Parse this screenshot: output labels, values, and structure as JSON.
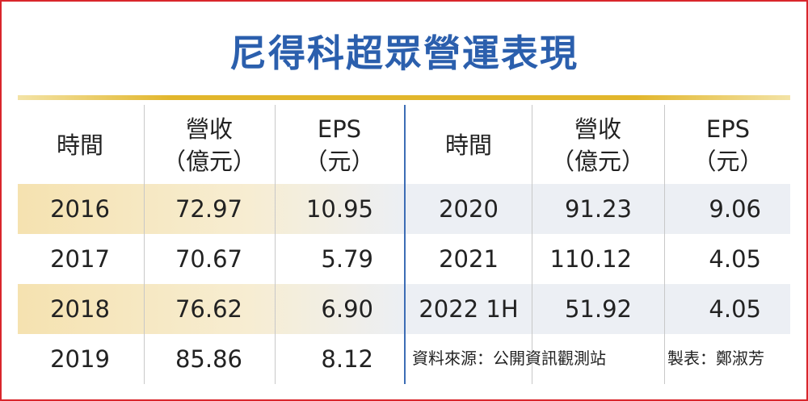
{
  "title": "尼得科超眾營運表現",
  "table": {
    "halves": [
      {
        "header": [
          [
            "時間"
          ],
          [
            "營收",
            "（億元）"
          ],
          [
            "EPS",
            "（元）"
          ]
        ],
        "rows": [
          [
            "2016",
            "72.97",
            "10.95"
          ],
          [
            "2017",
            "70.67",
            "5.79"
          ],
          [
            "2018",
            "76.62",
            "6.90"
          ],
          [
            "2019",
            "85.86",
            "8.12"
          ]
        ]
      },
      {
        "header": [
          [
            "時間"
          ],
          [
            "營收",
            "（億元）"
          ],
          [
            "EPS",
            "（元）"
          ]
        ],
        "rows": [
          [
            "2020",
            "91.23",
            "9.06"
          ],
          [
            "2021",
            "110.12",
            "4.05"
          ],
          [
            "2022 1H",
            "51.92",
            "4.05"
          ]
        ]
      }
    ]
  },
  "source": "資料來源：公開資訊觀測站",
  "credit": "製表：鄭淑芳"
}
